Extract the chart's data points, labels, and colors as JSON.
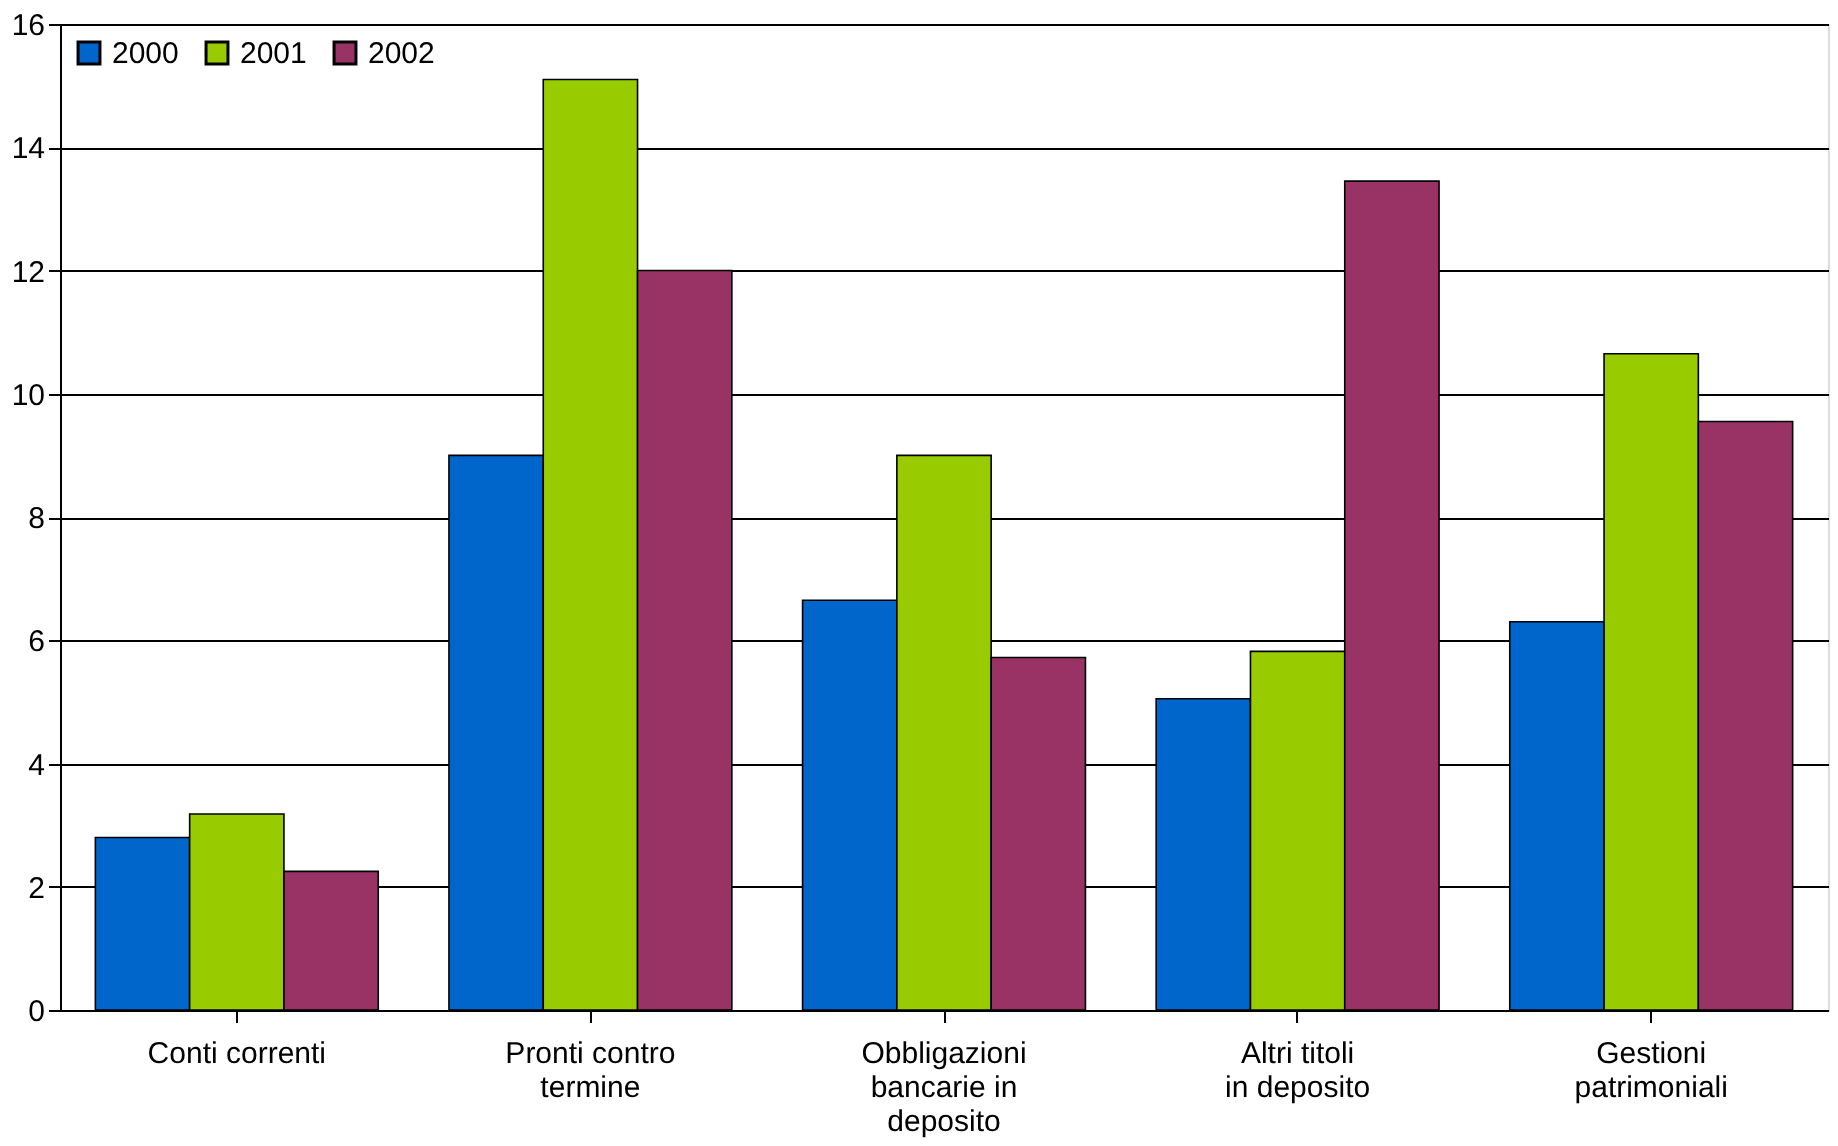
{
  "chart_data": {
    "type": "bar",
    "categories": [
      "Conti correnti",
      "Pronti contro termine",
      "Obbligazioni bancarie in deposito",
      "Altri titoli in deposito",
      "Gestioni patrimoniali"
    ],
    "series": [
      {
        "name": "2000",
        "color": "#0066cc",
        "values": [
          2.8,
          9.0,
          6.65,
          5.05,
          6.3
        ]
      },
      {
        "name": "2001",
        "color": "#99cc00",
        "values": [
          3.18,
          15.1,
          9.0,
          5.82,
          10.65
        ]
      },
      {
        "name": "2002",
        "color": "#993366",
        "values": [
          2.25,
          12.0,
          5.72,
          13.45,
          9.55
        ]
      }
    ],
    "ylim": [
      0,
      16
    ],
    "yticks": [
      0,
      2,
      4,
      6,
      8,
      10,
      12,
      14,
      16
    ],
    "grid": "y",
    "legend": "top left"
  }
}
